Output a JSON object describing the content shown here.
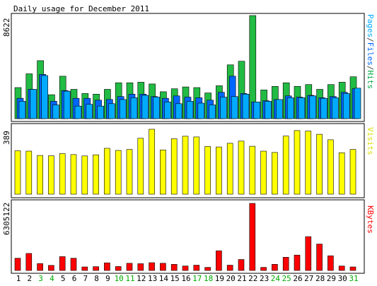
{
  "chart_data": [
    {
      "type": "bar",
      "panel": "hits-files-pages",
      "title": "Daily usage for December 2011",
      "ylabel_max": "8622",
      "ymax": 8622,
      "legend": [
        "Pages",
        "/",
        "Files",
        "/",
        "Hits"
      ],
      "legend_colors": [
        "#00aaff",
        "#444444",
        "#0066ff",
        "#444444",
        "#00aa44"
      ],
      "x_labels": [
        "1",
        "2",
        "3",
        "4",
        "5",
        "6",
        "7",
        "8",
        "9",
        "10",
        "11",
        "12",
        "13",
        "14",
        "15",
        "16",
        "17",
        "18",
        "19",
        "20",
        "21",
        "22",
        "23",
        "24",
        "25",
        "26",
        "27",
        "28",
        "29",
        "30",
        "31"
      ],
      "weekend_days": [
        "3",
        "4",
        "10",
        "11",
        "17",
        "18",
        "24",
        "25",
        "31"
      ],
      "series": [
        {
          "name": "Hits",
          "color": "#22bb44",
          "values": [
            2600,
            3750,
            4850,
            2000,
            3550,
            2450,
            2100,
            2050,
            2450,
            3000,
            3000,
            3050,
            2900,
            2250,
            2500,
            2650,
            2600,
            2150,
            2750,
            4500,
            4800,
            8622,
            2400,
            2700,
            3000,
            2700,
            2850,
            2450,
            2850,
            3050,
            3500
          ]
        },
        {
          "name": "Files",
          "color": "#0066ff",
          "values": [
            1700,
            2450,
            3700,
            1450,
            2350,
            1700,
            1700,
            1550,
            1600,
            1850,
            2050,
            2050,
            1850,
            1700,
            1900,
            1800,
            1750,
            1550,
            2200,
            3550,
            2100,
            1400,
            1500,
            1600,
            1900,
            1800,
            1950,
            1750,
            1850,
            2200,
            2500
          ]
        },
        {
          "name": "Pages",
          "color": "#00aaff",
          "values": [
            1450,
            2450,
            3600,
            1150,
            2300,
            1050,
            1200,
            1050,
            1250,
            1600,
            1750,
            1950,
            1800,
            1400,
            1250,
            1450,
            1300,
            1150,
            1800,
            1850,
            2050,
            1400,
            1450,
            1600,
            1750,
            1750,
            1900,
            1700,
            1750,
            2100,
            2550
          ]
        }
      ]
    },
    {
      "type": "bar",
      "panel": "visits",
      "ylabel_max": "389",
      "ymax": 389,
      "legend": [
        "Visits"
      ],
      "legend_colors": [
        "#dddd00"
      ],
      "series": [
        {
          "name": "Visits",
          "color": "#ffff00",
          "values": [
            260,
            258,
            232,
            230,
            243,
            237,
            229,
            236,
            275,
            262,
            268,
            335,
            389,
            265,
            332,
            347,
            343,
            286,
            283,
            305,
            318,
            287,
            258,
            250,
            348,
            381,
            378,
            359,
            326,
            248,
            268
          ]
        }
      ]
    },
    {
      "type": "bar",
      "panel": "kbytes",
      "ylabel_max": "6305122",
      "ymax": 6305122,
      "legend": [
        "KBytes"
      ],
      "legend_colors": [
        "#ff0000"
      ],
      "series": [
        {
          "name": "KBytes",
          "color": "#ff0000",
          "values": [
            1150000,
            1600000,
            650000,
            480000,
            1300000,
            1150000,
            330000,
            360000,
            720000,
            370000,
            680000,
            640000,
            730000,
            680000,
            580000,
            420000,
            500000,
            290000,
            1850000,
            500000,
            1030000,
            6305122,
            290000,
            580000,
            1240000,
            1450000,
            3180000,
            2480000,
            1380000,
            420000,
            330000
          ]
        }
      ]
    }
  ]
}
